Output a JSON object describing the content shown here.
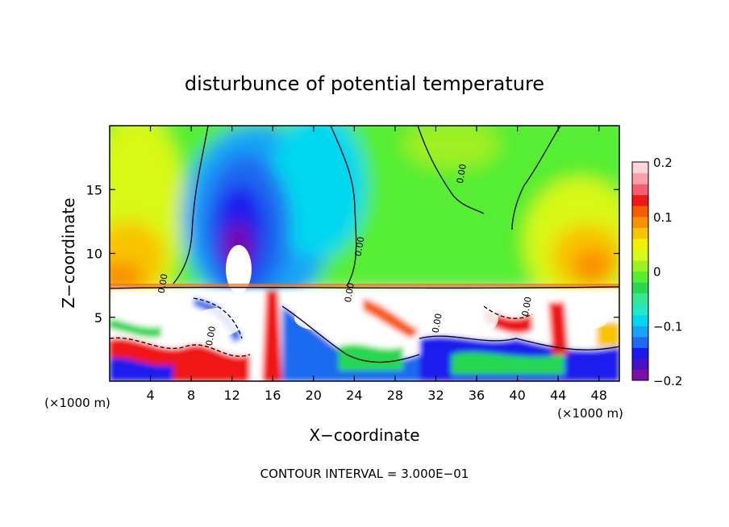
{
  "chart_data": {
    "type": "heatmap",
    "title": "disturbunce of potential temperature",
    "xlabel": "X−coordinate",
    "ylabel": "Z−coordinate",
    "x_unit_label": "(×1000 m)",
    "x_unit_label_right": "(×1000 m)",
    "xlim": [
      0,
      50
    ],
    "ylim": [
      0,
      20
    ],
    "x_ticks": [
      "4",
      "8",
      "12",
      "16",
      "20",
      "24",
      "28",
      "32",
      "36",
      "40",
      "44",
      "48"
    ],
    "x_tick_values": [
      4,
      8,
      12,
      16,
      20,
      24,
      28,
      32,
      36,
      40,
      44,
      48
    ],
    "y_ticks": [
      "5",
      "10",
      "15"
    ],
    "y_tick_values": [
      5,
      10,
      15
    ],
    "colorbar": {
      "range": [
        -0.2,
        0.2
      ],
      "tick_labels": [
        "0.2",
        "0.1",
        "0",
        "−0.1",
        "−0.2"
      ],
      "tick_values": [
        0.2,
        0.1,
        0,
        -0.1,
        -0.2
      ],
      "colors": [
        "#7b0fa8",
        "#4a12c8",
        "#1a1aee",
        "#1e6bf0",
        "#16a4f6",
        "#00d8f0",
        "#22e8c4",
        "#38e890",
        "#28d850",
        "#55ee30",
        "#9ef020",
        "#d8f818",
        "#f0f000",
        "#f8c400",
        "#f89000",
        "#f85c00",
        "#f01818",
        "#f06070",
        "#f8a0a8",
        "#ffd4d8"
      ]
    },
    "contour_labels": [
      {
        "text": "0.00",
        "x": 24.8,
        "y": 10.5
      },
      {
        "text": "0.00",
        "x": 34.8,
        "y": 16.2
      },
      {
        "text": "0.00",
        "x": 5.5,
        "y": 7.6
      },
      {
        "text": "0.00",
        "x": 23.8,
        "y": 6.9
      },
      {
        "text": "0.00",
        "x": 10.2,
        "y": 3.5
      },
      {
        "text": "0.00",
        "x": 32.4,
        "y": 4.5
      },
      {
        "text": "0.00",
        "x": 41.2,
        "y": 5.8
      }
    ],
    "annotation": "CONTOUR INTERVAL = 3.000E−01"
  }
}
